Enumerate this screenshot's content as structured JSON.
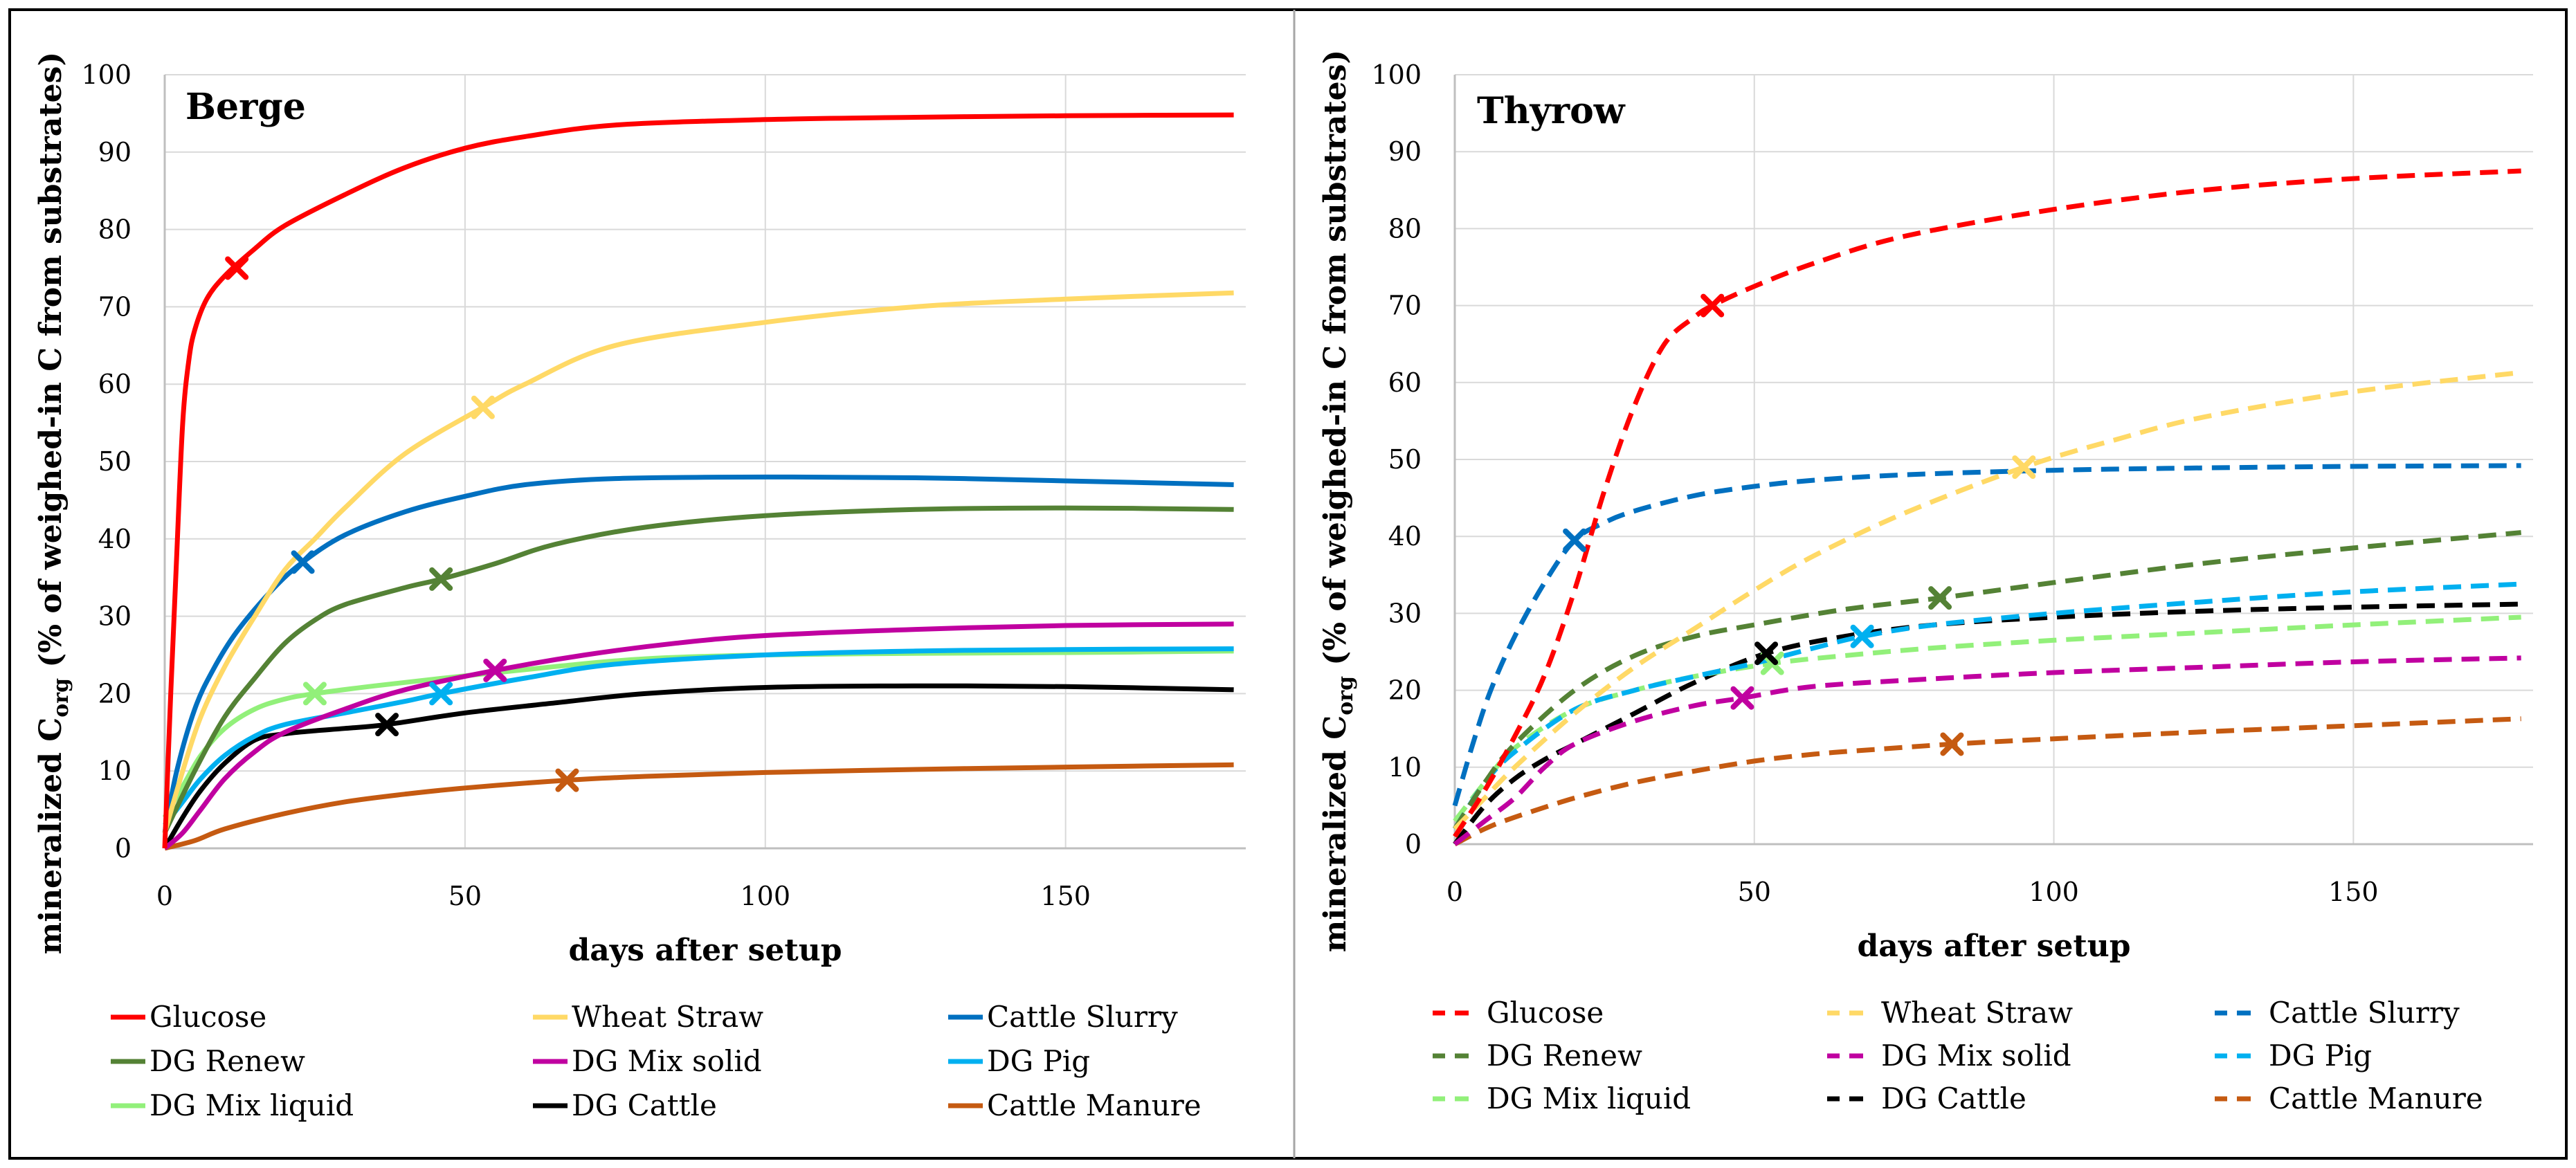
{
  "chart_data": [
    {
      "type": "line",
      "title": "Berge",
      "xlabel": "days after setup",
      "ylabel_main": "mineralized C",
      "ylabel_sub": "org",
      "ylabel_rest": " (% of weighed-in C from substrates)",
      "xlim": [
        0,
        180
      ],
      "ylim": [
        0,
        100
      ],
      "xticks": [
        "0",
        "50",
        "100",
        "150"
      ],
      "yticks": [
        "0",
        "10",
        "20",
        "30",
        "40",
        "50",
        "60",
        "70",
        "80",
        "90",
        "100"
      ],
      "line_style": "solid",
      "series": [
        {
          "name": "Glucose",
          "color": "#ff0000",
          "marker": [
            12,
            75
          ],
          "x": [
            0,
            1,
            2,
            3,
            4,
            5,
            7,
            10,
            15,
            20,
            30,
            40,
            50,
            60,
            75,
            100,
            125,
            150,
            178
          ],
          "y": [
            0,
            20,
            38,
            55,
            63,
            67,
            71,
            74,
            77.5,
            80.5,
            84.5,
            88,
            90.5,
            92,
            93.5,
            94.2,
            94.5,
            94.7,
            94.8
          ]
        },
        {
          "name": "Wheat Straw",
          "color": "#ffd966",
          "marker": [
            53,
            57
          ],
          "x": [
            0,
            3,
            6,
            10,
            15,
            20,
            25,
            30,
            40,
            53,
            60,
            75,
            100,
            125,
            150,
            178
          ],
          "y": [
            2,
            10,
            17,
            23.5,
            30,
            36,
            40,
            44,
            51,
            57,
            60,
            65,
            68,
            70,
            71,
            71.8
          ]
        },
        {
          "name": "Cattle Slurry",
          "color": "#0070c0",
          "marker": [
            23,
            37
          ],
          "x": [
            0,
            2,
            5,
            8,
            12,
            18,
            23,
            30,
            40,
            50,
            60,
            75,
            100,
            125,
            150,
            178
          ],
          "y": [
            2,
            10,
            18,
            23,
            28,
            33.5,
            37,
            40.5,
            43.5,
            45.5,
            47,
            47.8,
            48,
            47.9,
            47.5,
            47
          ]
        },
        {
          "name": "DG Renew",
          "color": "#548235",
          "marker": [
            46,
            34.8
          ],
          "x": [
            0,
            5,
            10,
            15,
            20,
            25,
            30,
            40,
            46,
            55,
            65,
            80,
            100,
            125,
            150,
            178
          ],
          "y": [
            2,
            10,
            17,
            22,
            26.5,
            29.5,
            31.5,
            33.7,
            34.8,
            36.8,
            39.3,
            41.5,
            43,
            43.8,
            44,
            43.8
          ]
        },
        {
          "name": "DG Mix solid",
          "color": "#c000a0",
          "marker": [
            55,
            23
          ],
          "x": [
            0,
            3,
            6,
            10,
            15,
            20,
            30,
            40,
            55,
            70,
            85,
            100,
            125,
            150,
            178
          ],
          "y": [
            0,
            2,
            5,
            9,
            12.5,
            15,
            18,
            20.5,
            23,
            25,
            26.5,
            27.5,
            28.3,
            28.8,
            29
          ]
        },
        {
          "name": "DG Pig",
          "color": "#00b0f0",
          "marker": [
            46,
            20
          ],
          "x": [
            0,
            3,
            6,
            10,
            15,
            20,
            30,
            40,
            46,
            60,
            75,
            100,
            125,
            150,
            178
          ],
          "y": [
            3,
            6,
            9,
            12,
            14.5,
            16,
            17.5,
            19,
            20,
            22,
            23.8,
            25,
            25.5,
            25.7,
            25.8
          ]
        },
        {
          "name": "DG Mix liquid",
          "color": "#92f07a",
          "marker": [
            25,
            20
          ],
          "x": [
            0,
            3,
            6,
            10,
            15,
            20,
            25,
            35,
            50,
            65,
            80,
            100,
            125,
            150,
            178
          ],
          "y": [
            4,
            8,
            12,
            15.5,
            18,
            19.3,
            20,
            21,
            22.3,
            23.5,
            24.5,
            25,
            25.2,
            25.3,
            25.5
          ]
        },
        {
          "name": "DG Cattle",
          "color": "#000000",
          "marker": [
            37,
            16
          ],
          "x": [
            0,
            3,
            6,
            10,
            15,
            20,
            25,
            30,
            37,
            50,
            65,
            80,
            100,
            125,
            150,
            178
          ],
          "y": [
            0,
            4,
            7.5,
            11,
            14,
            14.8,
            15.2,
            15.5,
            16,
            17.5,
            18.8,
            20,
            20.8,
            21,
            20.9,
            20.5
          ]
        },
        {
          "name": "Cattle Manure",
          "color": "#c55a11",
          "marker": [
            67,
            8.8
          ],
          "x": [
            0,
            5,
            10,
            20,
            30,
            40,
            50,
            67,
            80,
            100,
            125,
            150,
            178
          ],
          "y": [
            0,
            1,
            2.5,
            4.5,
            6,
            7,
            7.8,
            8.8,
            9.3,
            9.8,
            10.2,
            10.5,
            10.8
          ]
        }
      ],
      "legend": [
        "Glucose",
        "Wheat Straw",
        "Cattle Slurry",
        "DG Renew",
        "DG Mix solid",
        "DG Pig",
        "DG Mix liquid",
        "DG Cattle",
        "Cattle Manure"
      ]
    },
    {
      "type": "line",
      "title": "Thyrow",
      "xlabel": "days after setup",
      "ylabel_main": "mineralized C",
      "ylabel_sub": "org",
      "ylabel_rest": " (% of weighed-in C from substrates)",
      "xlim": [
        0,
        180
      ],
      "ylim": [
        0,
        100
      ],
      "xticks": [
        "0",
        "50",
        "100",
        "150"
      ],
      "yticks": [
        "0",
        "10",
        "20",
        "30",
        "40",
        "50",
        "60",
        "70",
        "80",
        "90",
        "100"
      ],
      "line_style": "dashed",
      "series": [
        {
          "name": "Glucose",
          "color": "#ff0000",
          "marker": [
            43,
            70
          ],
          "x": [
            0,
            5,
            10,
            15,
            20,
            25,
            30,
            35,
            40,
            43,
            50,
            60,
            75,
            100,
            125,
            150,
            178
          ],
          "y": [
            1,
            7,
            14,
            22,
            33,
            46,
            57,
            65,
            68.5,
            70,
            72.5,
            75.5,
            79,
            82.5,
            85,
            86.5,
            87.5
          ]
        },
        {
          "name": "Wheat Straw",
          "color": "#ffd966",
          "marker": [
            95,
            49
          ],
          "x": [
            0,
            5,
            10,
            20,
            30,
            40,
            50,
            60,
            75,
            95,
            110,
            125,
            150,
            178
          ],
          "y": [
            2,
            6,
            10,
            17,
            23,
            28,
            33,
            37.5,
            43,
            49,
            52.5,
            55.5,
            58.8,
            61.3
          ]
        },
        {
          "name": "Cattle Slurry",
          "color": "#0070c0",
          "marker": [
            20,
            39.5
          ],
          "x": [
            0,
            3,
            6,
            10,
            15,
            20,
            25,
            30,
            40,
            50,
            60,
            75,
            100,
            125,
            150,
            178
          ],
          "y": [
            5,
            13,
            20,
            27,
            34,
            39.5,
            41.8,
            43.3,
            45.3,
            46.5,
            47.3,
            48,
            48.6,
            48.9,
            49.1,
            49.2
          ]
        },
        {
          "name": "DG Renew",
          "color": "#548235",
          "marker": [
            81,
            32
          ],
          "x": [
            0,
            5,
            10,
            20,
            30,
            40,
            50,
            65,
            81,
            100,
            125,
            150,
            178
          ],
          "y": [
            2,
            8,
            13,
            20,
            24.5,
            27,
            28.5,
            30.5,
            32,
            34,
            36.5,
            38.5,
            40.5
          ]
        },
        {
          "name": "DG Mix solid",
          "color": "#c000a0",
          "marker": [
            48,
            19
          ],
          "x": [
            0,
            5,
            10,
            15,
            20,
            30,
            40,
            48,
            60,
            80,
            100,
            125,
            150,
            178
          ],
          "y": [
            0,
            3,
            6,
            10,
            13,
            16,
            18,
            19,
            20.5,
            21.5,
            22.3,
            23,
            23.7,
            24.2
          ]
        },
        {
          "name": "DG Pig",
          "color": "#00b0f0",
          "marker": [
            68,
            27
          ],
          "x": [
            0,
            5,
            10,
            20,
            30,
            40,
            50,
            60,
            68,
            80,
            100,
            125,
            150,
            178
          ],
          "y": [
            2,
            8,
            12,
            17.5,
            20,
            21.8,
            23.5,
            25.5,
            27,
            28.5,
            30,
            31.5,
            32.8,
            33.8
          ]
        },
        {
          "name": "DG Mix liquid",
          "color": "#92f07a",
          "marker": [
            53,
            23.5
          ],
          "x": [
            0,
            5,
            10,
            20,
            30,
            40,
            53,
            65,
            80,
            100,
            125,
            150,
            178
          ],
          "y": [
            3,
            8,
            12.5,
            17.5,
            20,
            21.8,
            23.5,
            24.5,
            25.5,
            26.5,
            27.5,
            28.5,
            29.5
          ]
        },
        {
          "name": "DG Cattle",
          "color": "#000000",
          "marker": [
            52,
            24.8
          ],
          "x": [
            0,
            5,
            10,
            15,
            20,
            30,
            40,
            52,
            65,
            80,
            100,
            125,
            150,
            178
          ],
          "y": [
            0,
            5,
            8.5,
            11,
            13,
            17,
            21,
            24.8,
            27,
            28.5,
            29.5,
            30.3,
            30.8,
            31.2
          ]
        },
        {
          "name": "Cattle Manure",
          "color": "#c55a11",
          "marker": [
            83,
            13
          ],
          "x": [
            0,
            5,
            10,
            20,
            30,
            40,
            50,
            60,
            70,
            83,
            100,
            125,
            150,
            178
          ],
          "y": [
            0,
            2,
            3.5,
            6,
            8,
            9.5,
            10.8,
            11.7,
            12.3,
            13,
            13.7,
            14.6,
            15.4,
            16.3
          ]
        }
      ],
      "legend": [
        "Glucose",
        "Wheat Straw",
        "Cattle Slurry",
        "DG Renew",
        "DG Mix solid",
        "DG Pig",
        "DG Mix liquid",
        "DG Cattle",
        "Cattle Manure"
      ]
    }
  ]
}
